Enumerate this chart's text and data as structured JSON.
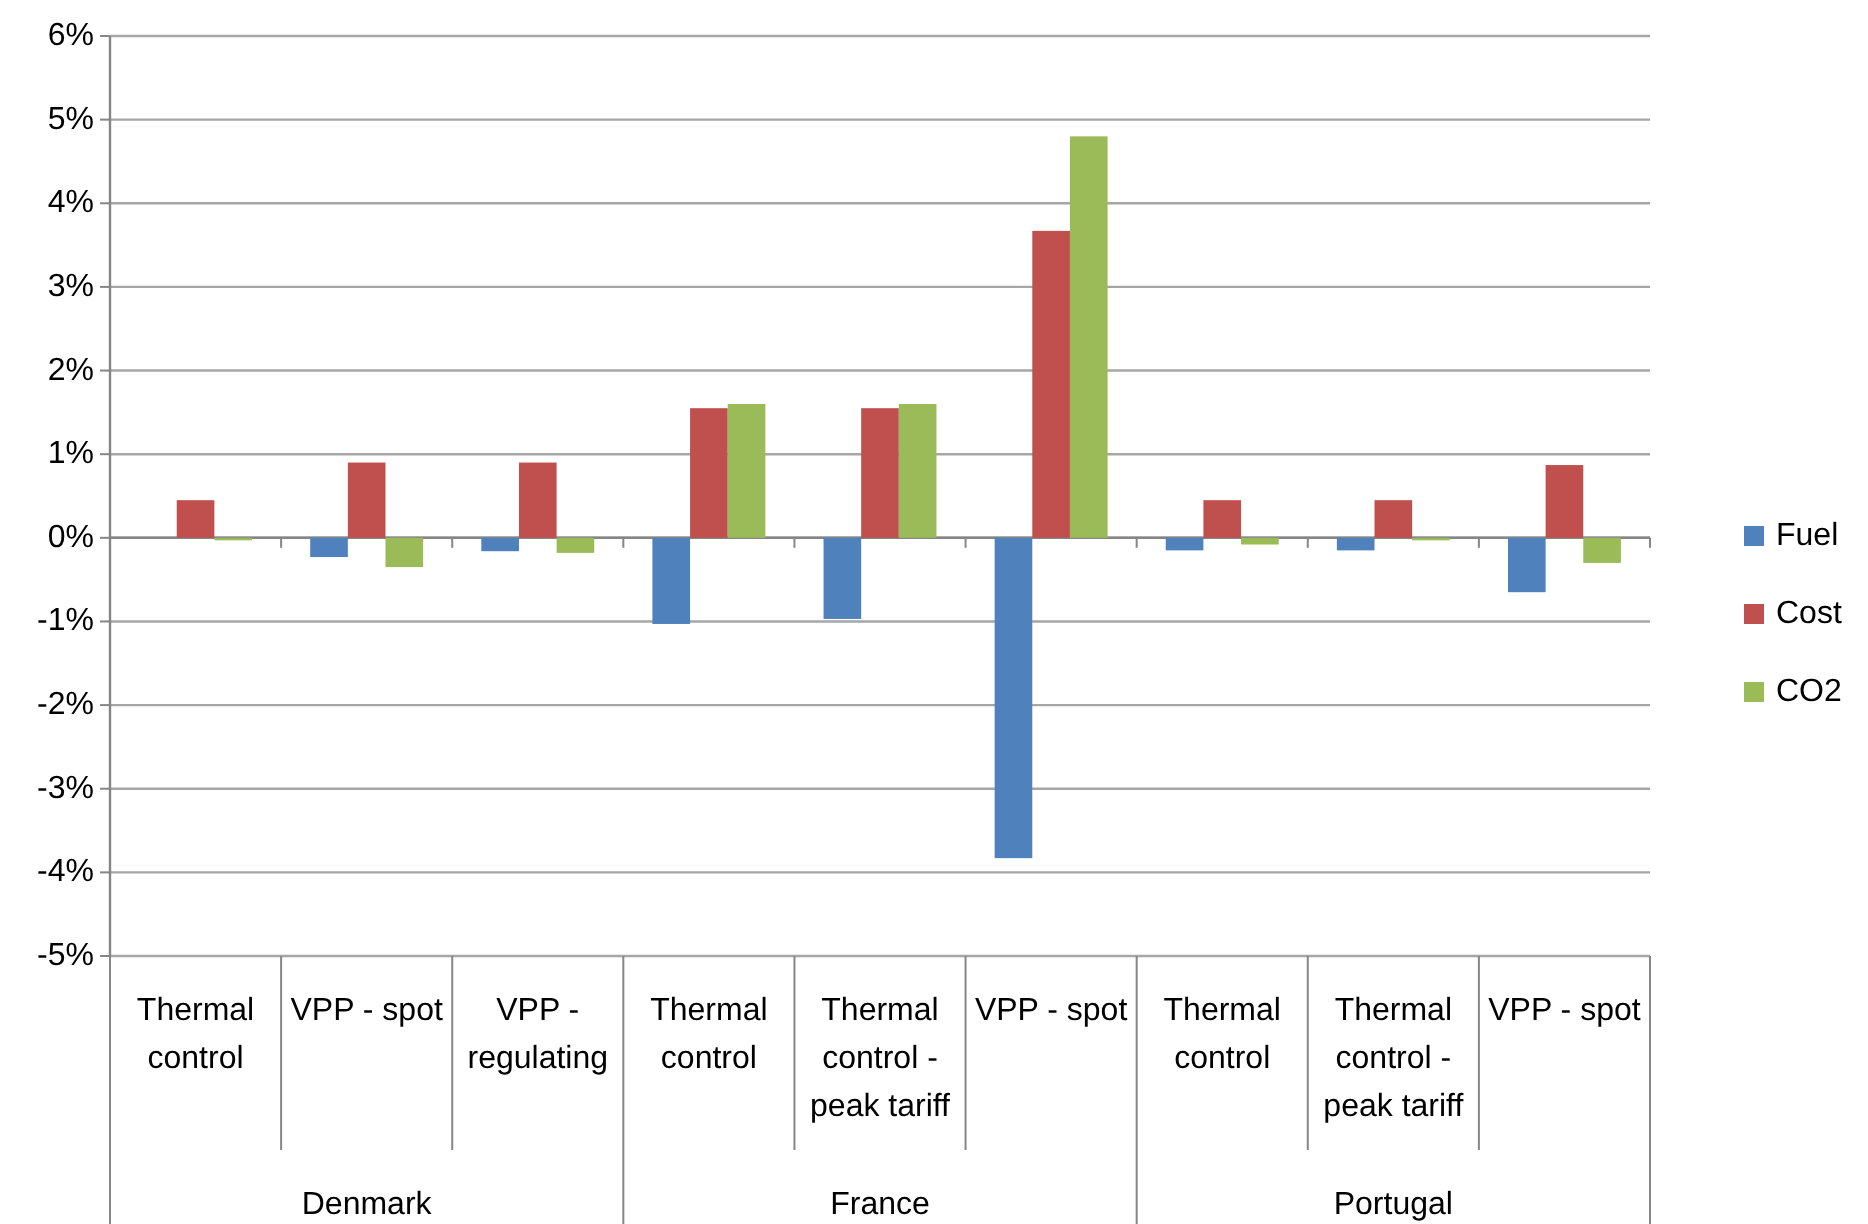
{
  "chart_data": {
    "type": "bar",
    "categories": [
      "Thermal control",
      "VPP - spot",
      "VPP - regulating",
      "Thermal control",
      "Thermal control - peak tariff",
      "VPP - spot",
      "Thermal control",
      "Thermal control - peak tariff",
      "VPP - spot"
    ],
    "annotations": [
      "Denmark",
      "France",
      "Portugal"
    ],
    "series": [
      {
        "name": "Fuel",
        "color": "#4f81bd",
        "values": [
          0,
          -0.23,
          -0.16,
          -1.03,
          -0.97,
          -3.83,
          -0.15,
          -0.15,
          -0.65
        ]
      },
      {
        "name": "Cost",
        "color": "#c0504d",
        "values": [
          0.45,
          0.9,
          0.9,
          1.55,
          1.55,
          3.67,
          0.45,
          0.45,
          0.87
        ]
      },
      {
        "name": "CO2",
        "color": "#9bbb59",
        "values": [
          -0.03,
          -0.35,
          -0.18,
          1.6,
          1.6,
          4.8,
          -0.08,
          -0.03,
          -0.3
        ]
      }
    ],
    "ylim": [
      -5,
      6
    ],
    "yticks": [
      {
        "value": -5,
        "label": "-5%"
      },
      {
        "value": -4,
        "label": "-4%"
      },
      {
        "value": -3,
        "label": "-3%"
      },
      {
        "value": -2,
        "label": "-2%"
      },
      {
        "value": -1,
        "label": "-1%"
      },
      {
        "value": 0,
        "label": "0%"
      },
      {
        "value": 1,
        "label": "1%"
      },
      {
        "value": 2,
        "label": "2%"
      },
      {
        "value": 3,
        "label": "3%"
      },
      {
        "value": 4,
        "label": "4%"
      },
      {
        "value": 5,
        "label": "5%"
      },
      {
        "value": 6,
        "label": "6%"
      }
    ],
    "grid": "y",
    "legend": "right"
  }
}
